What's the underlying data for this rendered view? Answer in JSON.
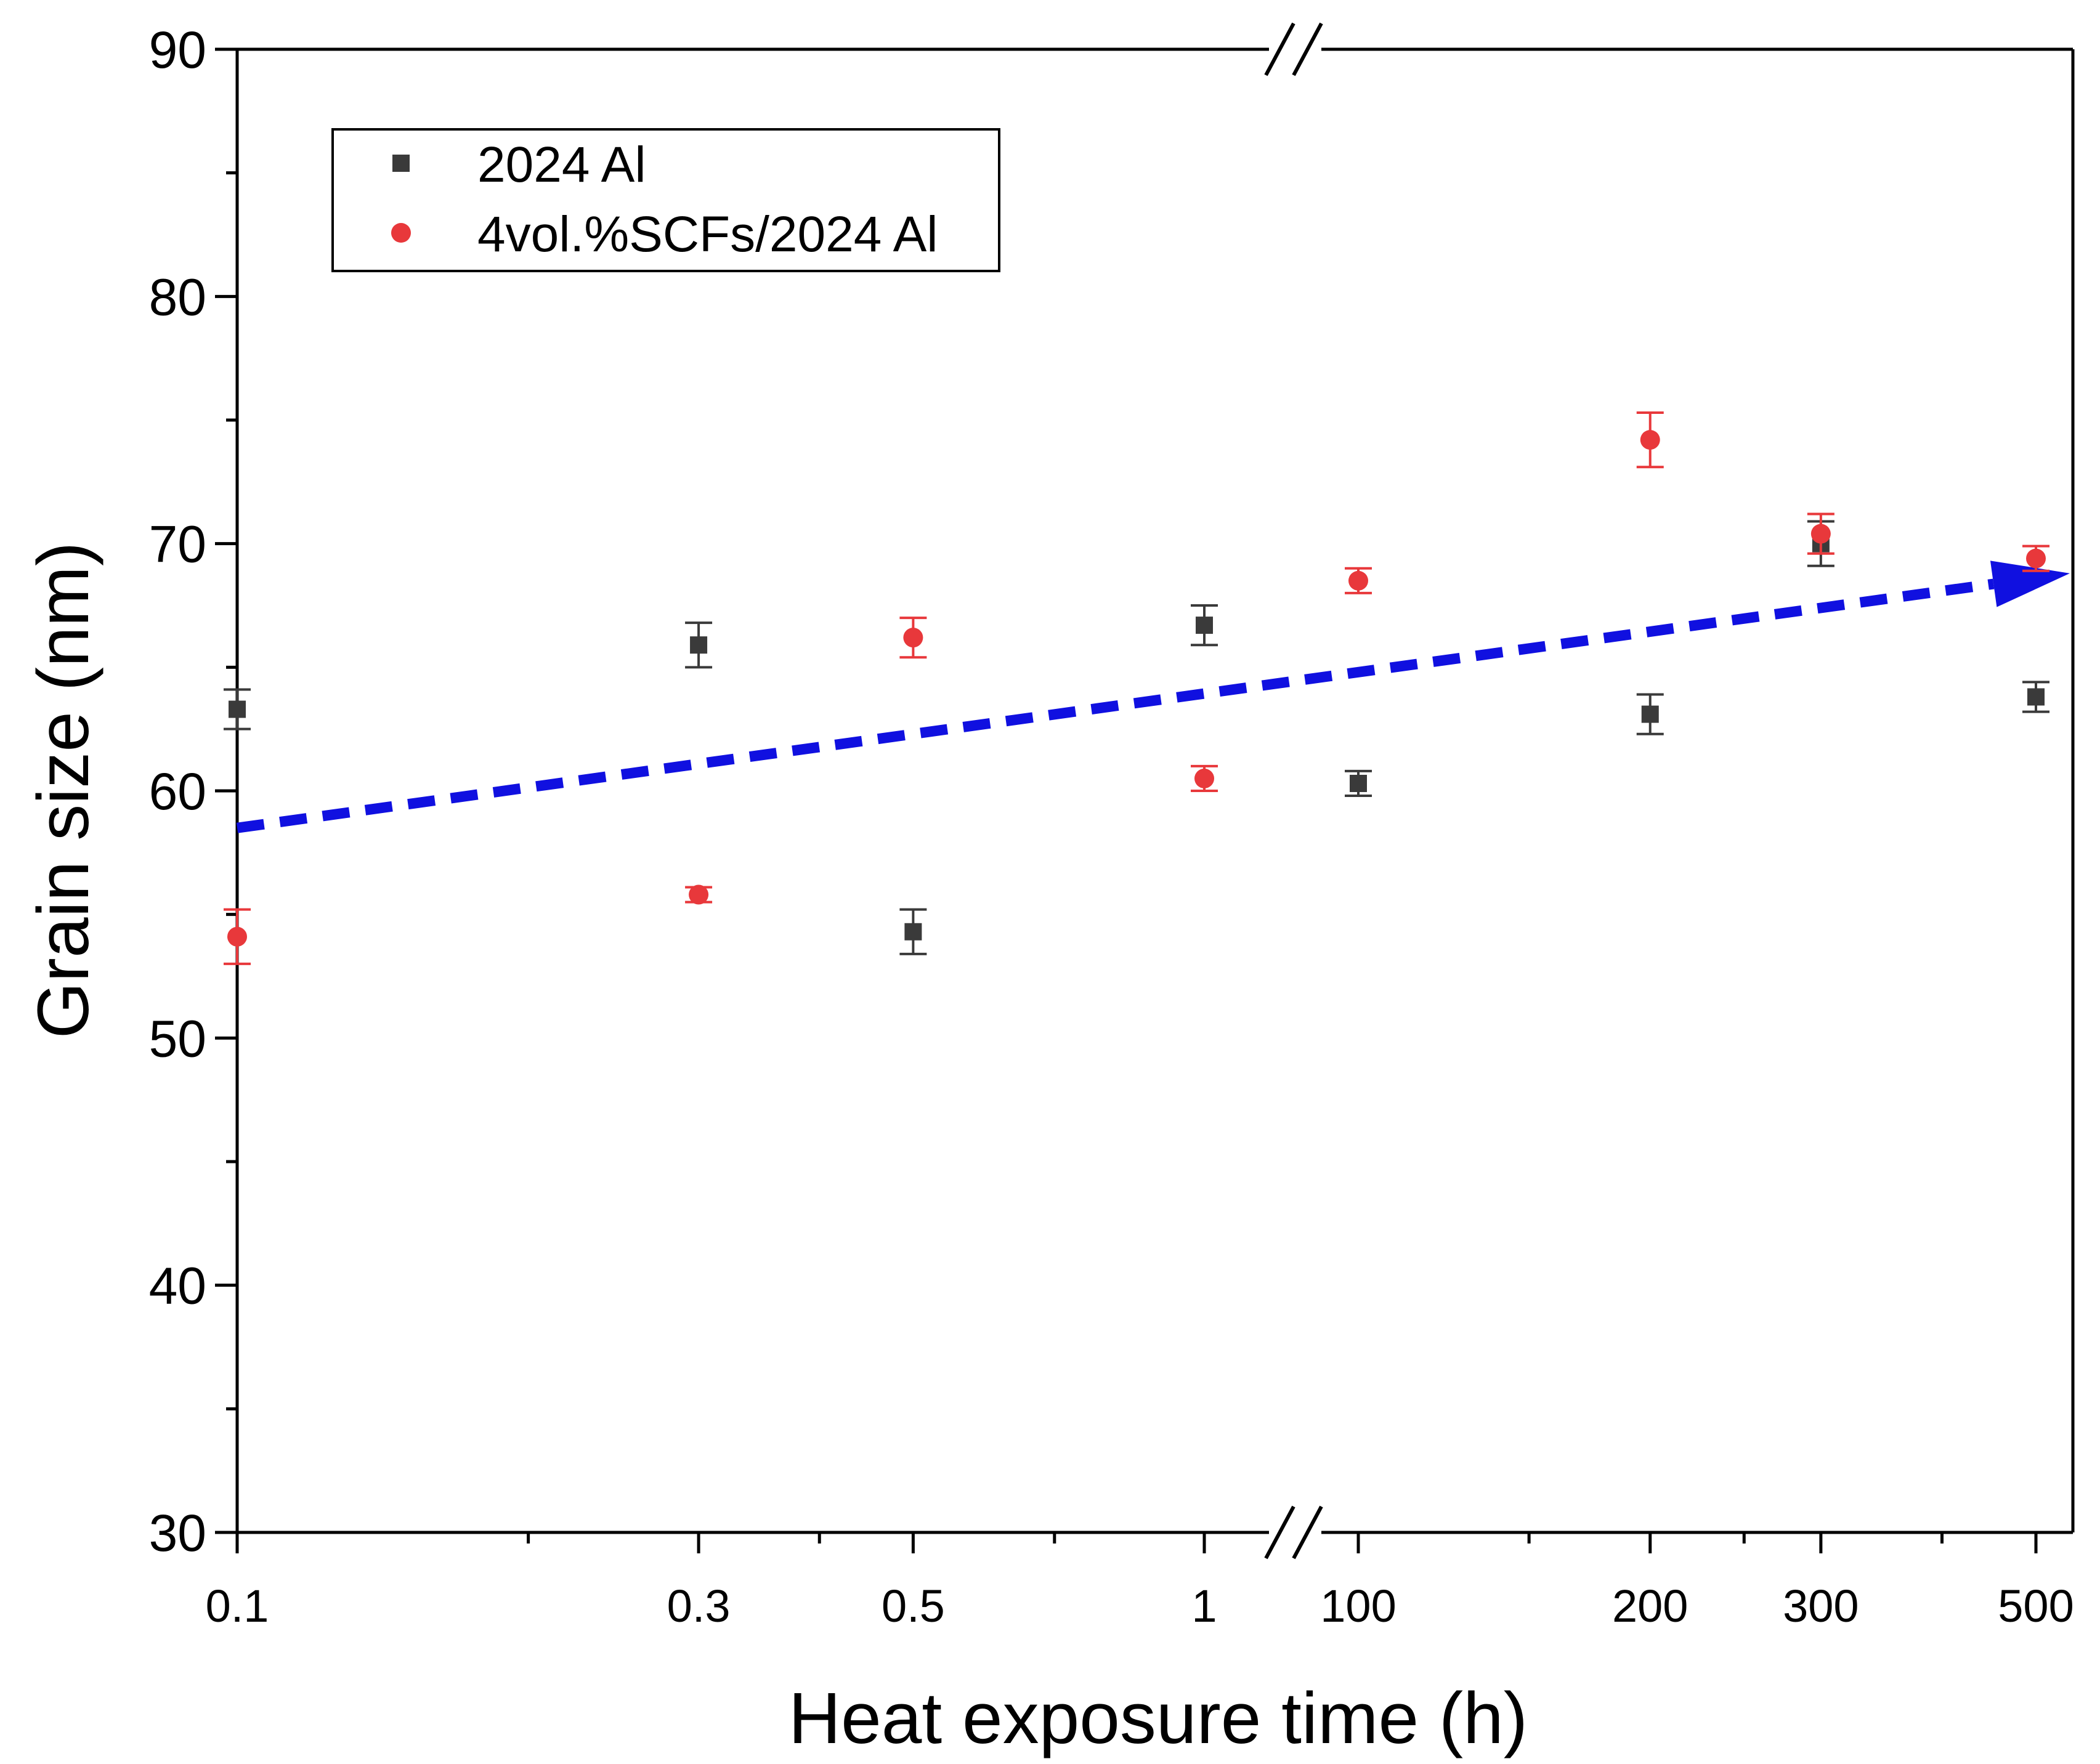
{
  "chart_data": {
    "type": "scatter",
    "title": "",
    "xlabel": "Heat exposure time (h)",
    "ylabel": "Grain size (nm)",
    "x_scale": "log (broken axis)",
    "x_segments": [
      {
        "range": [
          0.1,
          1
        ],
        "ticks": [
          "0.1",
          "0.3",
          "0.5",
          "1"
        ]
      },
      {
        "range": [
          100,
          500
        ],
        "ticks": [
          "100",
          "200",
          "300",
          "500"
        ]
      }
    ],
    "ylim": [
      30,
      90
    ],
    "yticks": [
      "30",
      "40",
      "50",
      "60",
      "70",
      "80",
      "90"
    ],
    "legend_position": "top-left",
    "series": [
      {
        "name": "2024 Al",
        "marker": "square",
        "color": "#3a3a3a",
        "errorbar_color": "#3a3a3a",
        "points": [
          {
            "x": 0.1,
            "y": 63.3,
            "err": 0.8
          },
          {
            "x": 0.3,
            "y": 65.9,
            "err": 0.9
          },
          {
            "x": 0.5,
            "y": 54.3,
            "err": 0.9
          },
          {
            "x": 1,
            "y": 66.7,
            "err": 0.8
          },
          {
            "x": 100,
            "y": 60.3,
            "err": 0.5
          },
          {
            "x": 200,
            "y": 63.1,
            "err": 0.8
          },
          {
            "x": 300,
            "y": 70.0,
            "err": 0.9
          },
          {
            "x": 500,
            "y": 63.8,
            "err": 0.6
          }
        ]
      },
      {
        "name": "4vol.%SCFs/2024 Al",
        "marker": "circle",
        "color": "#e8383b",
        "errorbar_color": "#e8383b",
        "points": [
          {
            "x": 0.1,
            "y": 54.1,
            "err": 1.1
          },
          {
            "x": 0.3,
            "y": 55.8,
            "err": 0.3
          },
          {
            "x": 0.5,
            "y": 66.2,
            "err": 0.8
          },
          {
            "x": 1,
            "y": 60.5,
            "err": 0.5
          },
          {
            "x": 100,
            "y": 68.5,
            "err": 0.5
          },
          {
            "x": 200,
            "y": 74.2,
            "err": 1.1
          },
          {
            "x": 300,
            "y": 70.4,
            "err": 0.8
          },
          {
            "x": 500,
            "y": 69.4,
            "err": 0.5
          }
        ]
      }
    ],
    "annotations": [
      {
        "type": "trend-arrow",
        "style": "dashed",
        "color": "#1010e0",
        "from": {
          "x": 0.1,
          "y": 58.5
        },
        "to": {
          "x": 500,
          "y": 68.8
        }
      }
    ]
  }
}
